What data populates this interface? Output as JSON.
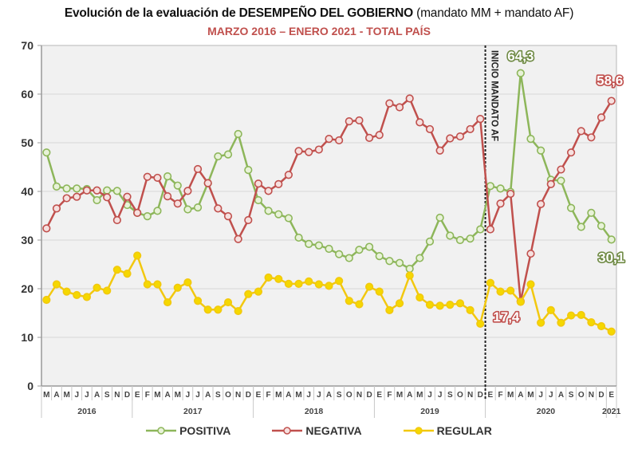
{
  "title_main": "Evolución de la evaluación de DESEMPEÑO DEL GOBIERNO",
  "title_suffix": " (mandato MM + mandato AF)",
  "subtitle": "MARZO 2016 – ENERO 2021 - TOTAL PAÍS",
  "chart_data": {
    "type": "line",
    "title": "Evolución de la evaluación de DESEMPEÑO DEL GOBIERNO (mandato MM + mandato AF)",
    "subtitle": "MARZO 2016 – ENERO 2021 - TOTAL PAÍS",
    "xlabel": "",
    "ylabel": "",
    "ylim": [
      0,
      70
    ],
    "yticks": [
      0,
      10,
      20,
      30,
      40,
      50,
      60,
      70
    ],
    "grid": true,
    "legend_position": "bottom",
    "years": [
      {
        "label": "2016",
        "months": [
          "M",
          "A",
          "M",
          "J",
          "J",
          "A",
          "S",
          "N",
          "D"
        ]
      },
      {
        "label": "2017",
        "months": [
          "E",
          "F",
          "M",
          "A",
          "M",
          "J",
          "J",
          "A",
          "S",
          "O",
          "N",
          "D"
        ]
      },
      {
        "label": "2018",
        "months": [
          "E",
          "F",
          "M",
          "A",
          "M",
          "J",
          "J",
          "A",
          "S",
          "O",
          "N",
          "D"
        ]
      },
      {
        "label": "2019",
        "months": [
          "E",
          "F",
          "M",
          "A",
          "M",
          "J",
          "J",
          "S",
          "O",
          "N",
          "D"
        ]
      },
      {
        "label": "2020",
        "months": [
          "E",
          "F",
          "M",
          "A",
          "M",
          "J",
          "J",
          "A",
          "S",
          "O",
          "N",
          "D"
        ]
      },
      {
        "label": "2021",
        "months": [
          "E"
        ]
      }
    ],
    "series": [
      {
        "name": "POSITIVA",
        "color": "#8db65a",
        "marker_fill": "#e8f2d8",
        "values": [
          48.0,
          41.0,
          40.6,
          40.6,
          40.5,
          38.2,
          40.2,
          40.1,
          37.2,
          35.6,
          34.9,
          36.0,
          43.1,
          41.2,
          36.3,
          36.7,
          41.7,
          47.2,
          47.6,
          51.8,
          44.4,
          38.2,
          36.0,
          35.3,
          34.5,
          30.5,
          29.2,
          28.9,
          28.2,
          27.1,
          26.3,
          28.0,
          28.6,
          26.7,
          25.7,
          25.3,
          24.1,
          26.3,
          29.7,
          34.6,
          30.9,
          30.0,
          30.3,
          32.2,
          41.1,
          40.6,
          39.9,
          64.3,
          50.8,
          48.4,
          42.4,
          42.2,
          36.6,
          32.7,
          35.6,
          32.9,
          30.1
        ]
      },
      {
        "name": "NEGATIVA",
        "color": "#c0504d",
        "marker_fill": "#f6e0df",
        "values": [
          32.4,
          36.5,
          38.6,
          38.9,
          40.2,
          40.2,
          38.8,
          34.1,
          38.9,
          35.6,
          43.0,
          42.8,
          39.0,
          37.5,
          40.1,
          44.6,
          41.7,
          36.5,
          34.9,
          30.2,
          34.1,
          41.6,
          40.1,
          41.5,
          43.4,
          48.3,
          48.1,
          48.6,
          50.8,
          50.5,
          54.4,
          54.6,
          51.0,
          51.6,
          58.1,
          57.3,
          59.1,
          54.2,
          52.8,
          48.4,
          50.9,
          51.3,
          52.8,
          54.9,
          32.2,
          37.5,
          39.5,
          17.4,
          27.2,
          37.4,
          41.5,
          44.5,
          48.0,
          52.4,
          51.1,
          55.2,
          58.6
        ]
      },
      {
        "name": "REGULAR",
        "color": "#f2c80f",
        "marker_fill": "#f5d800",
        "values": [
          17.7,
          20.9,
          19.4,
          18.7,
          18.3,
          20.2,
          19.6,
          23.9,
          23.1,
          26.8,
          20.9,
          20.9,
          17.2,
          20.2,
          21.3,
          17.5,
          15.7,
          15.7,
          17.2,
          15.4,
          18.9,
          19.4,
          22.3,
          22.0,
          21.0,
          21.0,
          21.5,
          20.9,
          20.6,
          21.6,
          17.5,
          16.8,
          20.4,
          19.4,
          15.6,
          17.0,
          22.7,
          18.2,
          16.7,
          16.5,
          16.7,
          17.0,
          15.6,
          12.8,
          21.2,
          19.4,
          19.6,
          17.3,
          20.9,
          13.0,
          15.6,
          13.0,
          14.5,
          14.6,
          13.1,
          12.3,
          11.2
        ]
      }
    ],
    "annotations": [
      {
        "text": "INICIO MANDATO AF",
        "type": "vertical-dashed-line",
        "before_index": 44
      },
      {
        "text": "64,3",
        "series": "POSITIVA",
        "index": 47
      },
      {
        "text": "58,6",
        "series": "NEGATIVA",
        "index": 56
      },
      {
        "text": "30,1",
        "series": "POSITIVA",
        "index": 56
      },
      {
        "text": "17,4",
        "series": "NEGATIVA",
        "index": 47
      }
    ]
  },
  "legend": [
    {
      "label": "POSITIVA",
      "color": "#8db65a",
      "marker_fill": "#e8f2d8"
    },
    {
      "label": "NEGATIVA",
      "color": "#c0504d",
      "marker_fill": "#f6e0df"
    },
    {
      "label": "REGULAR",
      "color": "#f2c80f",
      "marker_fill": "#f5d800"
    }
  ]
}
